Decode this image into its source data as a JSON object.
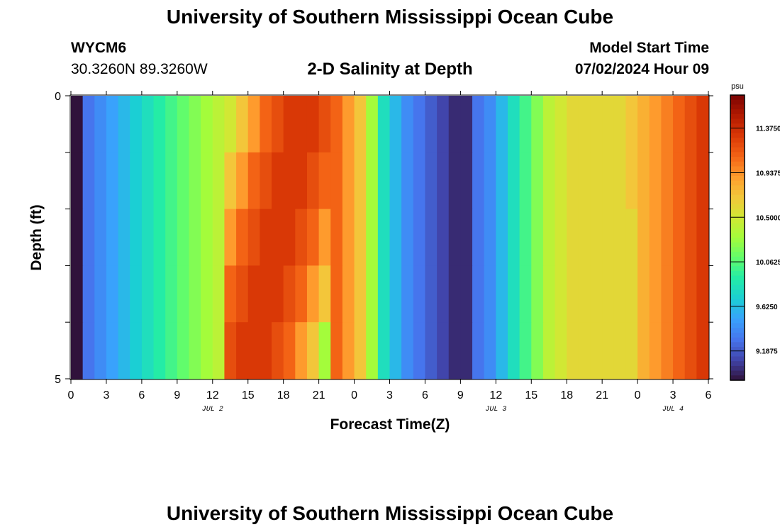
{
  "header": {
    "title": "University of Southern Mississippi Ocean Cube",
    "station": "WYCM6",
    "coordinates": "30.3260N  89.3260W",
    "subtitle": "2-D Salinity at Depth",
    "model_start_label": "Model Start Time",
    "model_start_value": "07/02/2024 Hour 09"
  },
  "footer": {
    "title": "University of Southern Mississippi Ocean Cube"
  },
  "chart_data": {
    "type": "heatmap",
    "title": "2-D Salinity at Depth",
    "xlabel": "Forecast Time(Z)",
    "ylabel": "Depth (ft)",
    "x_tick_labels": [
      "0",
      "3",
      "6",
      "9",
      "12",
      "15",
      "18",
      "21",
      "0",
      "3",
      "6",
      "9",
      "12",
      "15",
      "18",
      "21",
      "0",
      "3",
      "6"
    ],
    "x_day_labels": [
      {
        "label": "JUL 2",
        "at_hour": 12
      },
      {
        "label": "JUL 3",
        "at_hour": 36
      },
      {
        "label": "JUL 4",
        "at_hour": 51
      }
    ],
    "x_range_hours": [
      0,
      54
    ],
    "y_tick_labels": [
      "0",
      "5"
    ],
    "ylim": [
      0,
      5
    ],
    "colorbar": {
      "unit": "psu",
      "tick_labels": [
        "11.3750",
        "10.9375",
        "10.5000",
        "10.0625",
        "9.6250",
        "9.1875"
      ],
      "tick_values": [
        11.375,
        10.9375,
        10.5,
        10.0625,
        9.625,
        9.1875
      ],
      "range": [
        8.9,
        11.7
      ],
      "colormap": [
        "#30123b",
        "#4145ab",
        "#4675ed",
        "#39a2fc",
        "#1bcfd4",
        "#24eca6",
        "#61fc6c",
        "#a4fc3b",
        "#d1e834",
        "#f3c63a",
        "#fe9b2d",
        "#f36315",
        "#d93806",
        "#b11901",
        "#7a0403"
      ]
    },
    "depth_rows": [
      0,
      1,
      2,
      3,
      4
    ],
    "time_hours": [
      0,
      1,
      2,
      3,
      4,
      5,
      6,
      7,
      8,
      9,
      10,
      11,
      12,
      13,
      14,
      15,
      16,
      17,
      18,
      19,
      20,
      21,
      22,
      23,
      24,
      25,
      26,
      27,
      28,
      29,
      30,
      31,
      32,
      33,
      34,
      35,
      36,
      37,
      38,
      39,
      40,
      41,
      42,
      43,
      44,
      45,
      46,
      47,
      48,
      49,
      50,
      51,
      52,
      53,
      54
    ],
    "salinity_surface": [
      8.9,
      9.3,
      9.4,
      9.5,
      9.6,
      9.7,
      9.8,
      9.9,
      10.0,
      10.1,
      10.2,
      10.3,
      10.4,
      10.5,
      10.7,
      10.9,
      11.1,
      11.2,
      11.3,
      11.3,
      11.3,
      11.2,
      11.1,
      10.9,
      10.7,
      10.3,
      9.8,
      9.6,
      9.4,
      9.3,
      9.2,
      9.1,
      9.0,
      9.0,
      9.3,
      9.4,
      9.6,
      9.8,
      10.0,
      10.2,
      10.4,
      10.5,
      10.6,
      10.6,
      10.6,
      10.6,
      10.6,
      10.7,
      10.8,
      10.9,
      11.0,
      11.1,
      11.2,
      11.3,
      11.4
    ]
  }
}
